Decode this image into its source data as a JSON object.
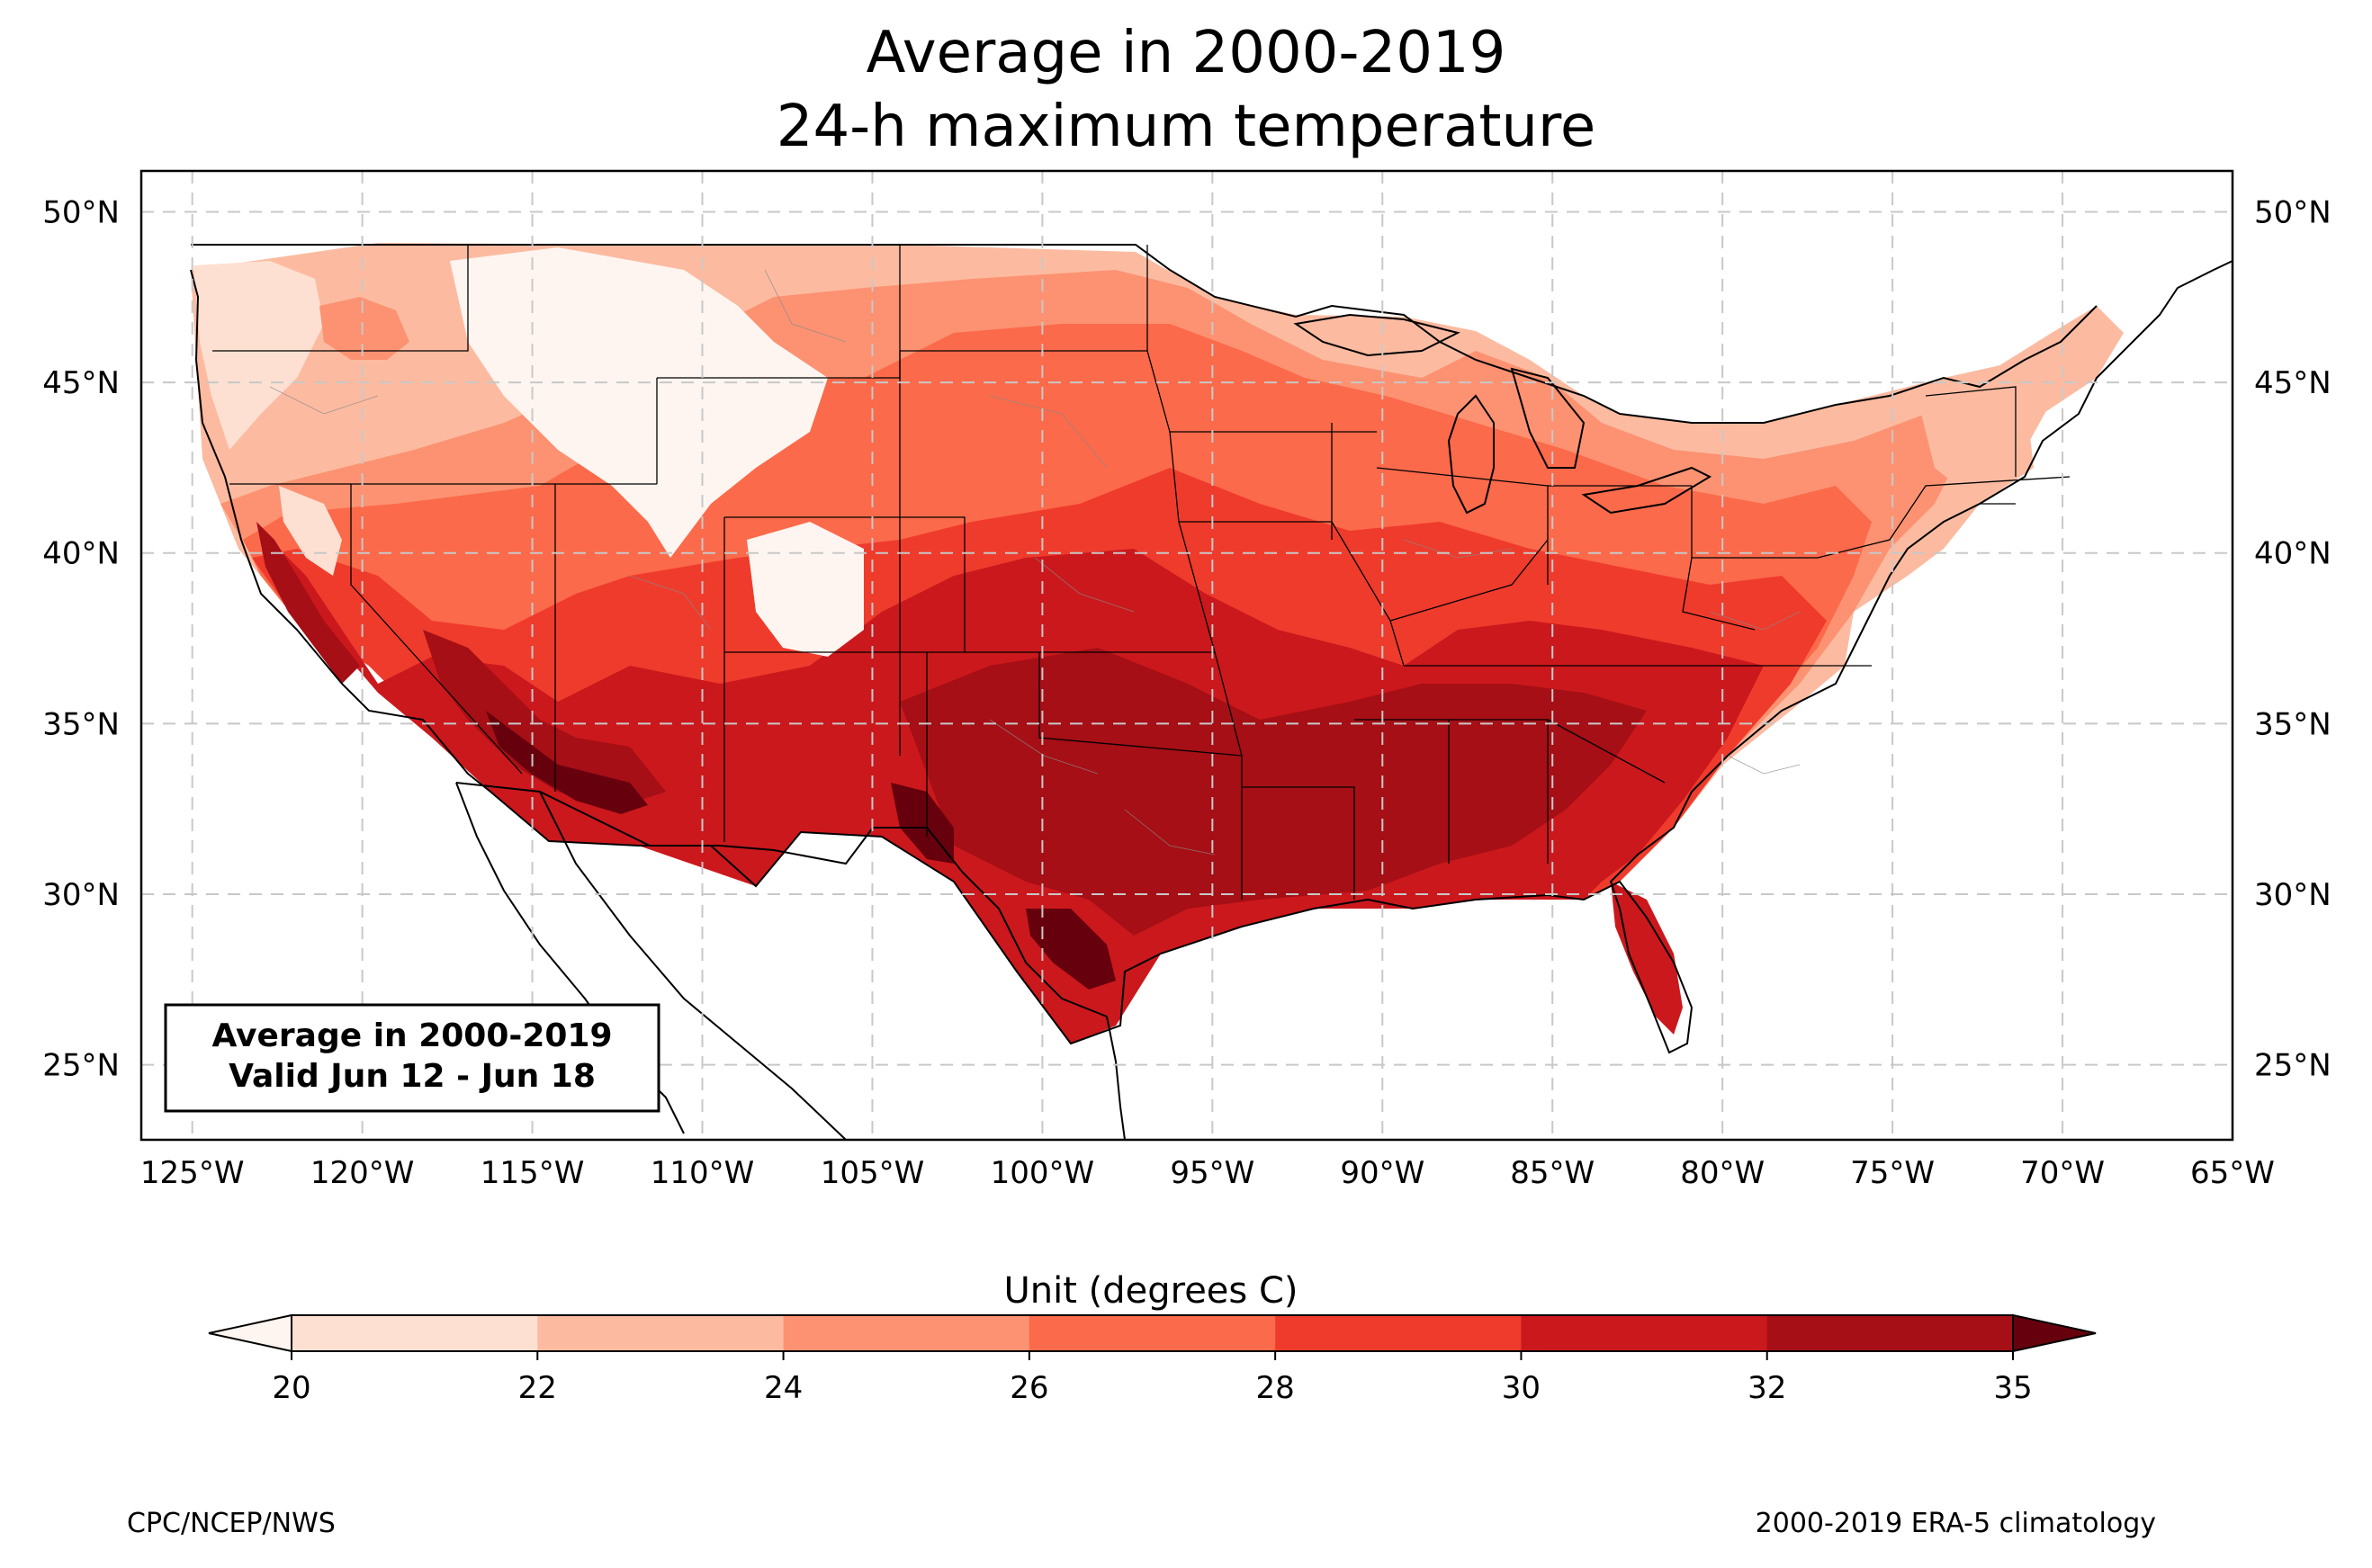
{
  "title": {
    "line1": "Average in 2000-2019",
    "line2": "24-h maximum temperature"
  },
  "map": {
    "lon_range": [
      -126.5,
      -65
    ],
    "lat_range": [
      22.8,
      51.2
    ],
    "lon_ticks": [
      {
        "value": -125,
        "label": "125°W"
      },
      {
        "value": -120,
        "label": "120°W"
      },
      {
        "value": -115,
        "label": "115°W"
      },
      {
        "value": -110,
        "label": "110°W"
      },
      {
        "value": -105,
        "label": "105°W"
      },
      {
        "value": -100,
        "label": "100°W"
      },
      {
        "value": -95,
        "label": "95°W"
      },
      {
        "value": -90,
        "label": "90°W"
      },
      {
        "value": -85,
        "label": "85°W"
      },
      {
        "value": -80,
        "label": "80°W"
      },
      {
        "value": -75,
        "label": "75°W"
      },
      {
        "value": -70,
        "label": "70°W"
      },
      {
        "value": -65,
        "label": "65°W"
      }
    ],
    "lat_ticks": [
      {
        "value": 50,
        "label": "50°N"
      },
      {
        "value": 45,
        "label": "45°N"
      },
      {
        "value": 40,
        "label": "40°N"
      },
      {
        "value": 35,
        "label": "35°N"
      },
      {
        "value": 30,
        "label": "30°N"
      },
      {
        "value": 25,
        "label": "25°N"
      }
    ],
    "gridlines": true,
    "info_box": {
      "line1": "Average in 2000-2019",
      "line2": "Valid Jun 12 - Jun 18"
    }
  },
  "colorbar": {
    "title": "Unit (degrees C)",
    "levels": [
      20,
      22,
      24,
      26,
      28,
      30,
      32,
      35
    ],
    "labels": [
      "20",
      "22",
      "24",
      "26",
      "28",
      "30",
      "32",
      "35"
    ],
    "colors": [
      "#fee0d2",
      "#fcbba1",
      "#fc9272",
      "#fb6a4a",
      "#ef3b2c",
      "#cb181d",
      "#a50f15"
    ],
    "under_color": "#fff5f0",
    "over_color": "#67000d",
    "extend": "both"
  },
  "credits": {
    "left": "CPC/NCEP/NWS",
    "right": "2000-2019 ERA-5 climatology"
  }
}
